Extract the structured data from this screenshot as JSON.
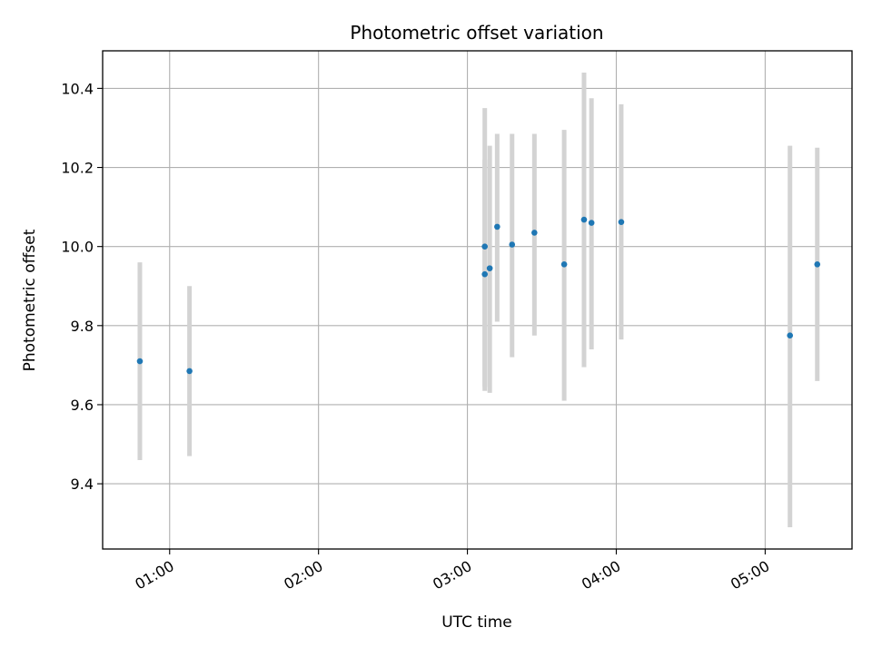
{
  "chart_data": {
    "type": "scatter",
    "title": "Photometric offset variation",
    "xlabel": "UTC time",
    "ylabel": "Photometric offset",
    "x_axis_kind": "time",
    "x_tick_labels": [
      "01:00",
      "02:00",
      "03:00",
      "04:00",
      "05:00"
    ],
    "y_tick_labels": [
      "9.4",
      "9.6",
      "9.8",
      "10.0",
      "10.2",
      "10.4"
    ],
    "xlim": [
      "00:33",
      "05:35"
    ],
    "ylim": [
      9.235,
      10.495
    ],
    "grid": true,
    "legend": "none",
    "series": [
      {
        "marker_color": "#1f77b4",
        "errorbar_color": "#d3d3d3",
        "points": [
          {
            "x": "00:48",
            "y": 9.71,
            "ylow": 9.46,
            "yhigh": 9.96
          },
          {
            "x": "01:08",
            "y": 9.685,
            "ylow": 9.47,
            "yhigh": 9.9
          },
          {
            "x": "03:07",
            "y": 9.93,
            "ylow": 9.635,
            "yhigh": 10.22
          },
          {
            "x": "03:07",
            "y": 10.0,
            "ylow": 9.645,
            "yhigh": 10.35
          },
          {
            "x": "03:09",
            "y": 9.945,
            "ylow": 9.63,
            "yhigh": 10.255
          },
          {
            "x": "03:12",
            "y": 10.05,
            "ylow": 9.81,
            "yhigh": 10.285
          },
          {
            "x": "03:18",
            "y": 10.005,
            "ylow": 9.72,
            "yhigh": 10.285
          },
          {
            "x": "03:27",
            "y": 10.035,
            "ylow": 9.775,
            "yhigh": 10.285
          },
          {
            "x": "03:39",
            "y": 9.955,
            "ylow": 9.61,
            "yhigh": 10.295
          },
          {
            "x": "03:47",
            "y": 10.068,
            "ylow": 9.695,
            "yhigh": 10.44
          },
          {
            "x": "03:50",
            "y": 10.06,
            "ylow": 9.74,
            "yhigh": 10.375
          },
          {
            "x": "04:02",
            "y": 10.062,
            "ylow": 9.765,
            "yhigh": 10.36
          },
          {
            "x": "05:10",
            "y": 9.775,
            "ylow": 9.29,
            "yhigh": 10.255
          },
          {
            "x": "05:21",
            "y": 9.955,
            "ylow": 9.66,
            "yhigh": 10.25
          }
        ]
      }
    ]
  }
}
